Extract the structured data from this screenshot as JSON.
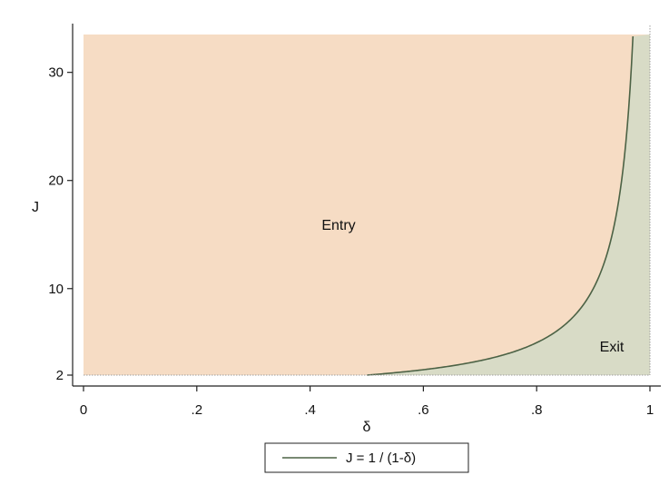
{
  "chart_data": {
    "type": "area",
    "title": "",
    "xlabel": "δ",
    "ylabel": "J",
    "xlim": [
      0,
      1
    ],
    "ylim": [
      1.3,
      34
    ],
    "x_ticks": [
      0,
      0.2,
      0.4,
      0.6,
      0.8,
      1
    ],
    "x_tick_labels": [
      "0",
      ".2",
      ".4",
      ".6",
      ".8",
      "1"
    ],
    "y_ticks": [
      2,
      10,
      20,
      30
    ],
    "y_tick_labels": [
      "2",
      "10",
      "20",
      "30"
    ],
    "plot_region": {
      "x_range": [
        0,
        1
      ],
      "y_range": [
        2,
        33.5
      ]
    },
    "series": [
      {
        "name": "J = 1 / (1-δ)",
        "function": "J = 1 / (1 - δ)",
        "x": [
          0.5,
          0.55,
          0.6,
          0.65,
          0.7,
          0.75,
          0.8,
          0.85,
          0.88,
          0.9,
          0.92,
          0.94,
          0.95,
          0.96,
          0.97
        ],
        "values": [
          2,
          2.22,
          2.5,
          2.86,
          3.33,
          4,
          5,
          6.67,
          8.33,
          10,
          12.5,
          16.67,
          20,
          25,
          33.3
        ]
      }
    ],
    "regions": [
      {
        "label": "Entry",
        "color": "#f6dcc4"
      },
      {
        "label": "Exit",
        "color": "#d8dbc6"
      }
    ],
    "legend_placement": "bottom-center",
    "grid": false,
    "colors": {
      "curve": "#4c6245",
      "axis": "#222222",
      "frame": "#9e9e9e",
      "border": "#dcdcdc"
    }
  }
}
